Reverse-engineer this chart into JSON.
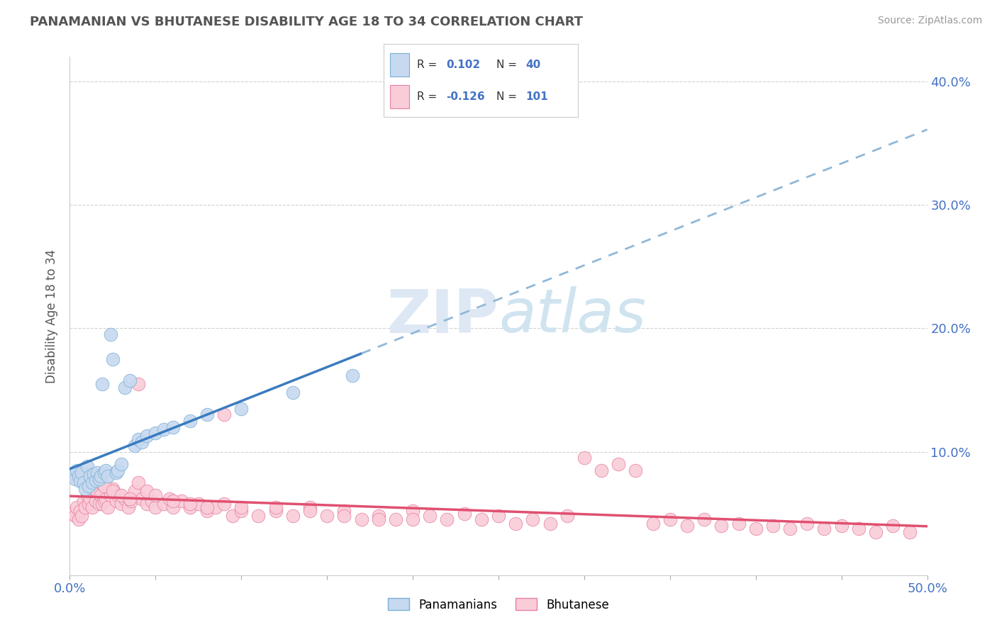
{
  "title": "PANAMANIAN VS BHUTANESE DISABILITY AGE 18 TO 34 CORRELATION CHART",
  "source": "Source: ZipAtlas.com",
  "ylabel": "Disability Age 18 to 34",
  "xlim": [
    0.0,
    0.5
  ],
  "ylim": [
    0.0,
    0.42
  ],
  "color_panamanian": "#c6d9f0",
  "color_bhutanese": "#f9ccd8",
  "color_panamanian_edge": "#7bafd4",
  "color_bhutanese_edge": "#e87fa0",
  "color_panamanian_line": "#3a7bbf",
  "color_bhutanese_line": "#e05070",
  "color_panamanian_line_dash": "#90b8d8",
  "color_title": "#555555",
  "color_source": "#999999",
  "color_legend_text_dark": "#333333",
  "color_legend_text_blue": "#4472c4",
  "background_color": "#ffffff",
  "pan_x": [
    0.002,
    0.003,
    0.004,
    0.005,
    0.006,
    0.007,
    0.008,
    0.009,
    0.01,
    0.011,
    0.012,
    0.013,
    0.014,
    0.015,
    0.016,
    0.017,
    0.018,
    0.019,
    0.02,
    0.021,
    0.022,
    0.024,
    0.025,
    0.027,
    0.028,
    0.03,
    0.032,
    0.035,
    0.038,
    0.04,
    0.042,
    0.045,
    0.05,
    0.055,
    0.06,
    0.07,
    0.08,
    0.1,
    0.13,
    0.165
  ],
  "pan_y": [
    0.082,
    0.078,
    0.085,
    0.08,
    0.076,
    0.083,
    0.075,
    0.07,
    0.088,
    0.072,
    0.08,
    0.075,
    0.082,
    0.077,
    0.083,
    0.078,
    0.08,
    0.155,
    0.083,
    0.085,
    0.08,
    0.195,
    0.175,
    0.083,
    0.085,
    0.09,
    0.152,
    0.158,
    0.105,
    0.11,
    0.108,
    0.113,
    0.115,
    0.118,
    0.12,
    0.125,
    0.13,
    0.135,
    0.148,
    0.162
  ],
  "bhu_x": [
    0.002,
    0.003,
    0.004,
    0.005,
    0.006,
    0.007,
    0.008,
    0.009,
    0.01,
    0.011,
    0.012,
    0.013,
    0.014,
    0.015,
    0.016,
    0.017,
    0.018,
    0.019,
    0.02,
    0.021,
    0.022,
    0.024,
    0.025,
    0.027,
    0.028,
    0.03,
    0.032,
    0.034,
    0.036,
    0.038,
    0.04,
    0.042,
    0.045,
    0.048,
    0.05,
    0.055,
    0.058,
    0.06,
    0.065,
    0.07,
    0.075,
    0.08,
    0.085,
    0.09,
    0.095,
    0.1,
    0.11,
    0.12,
    0.13,
    0.14,
    0.15,
    0.16,
    0.17,
    0.18,
    0.19,
    0.2,
    0.21,
    0.22,
    0.23,
    0.24,
    0.25,
    0.26,
    0.27,
    0.28,
    0.29,
    0.3,
    0.31,
    0.32,
    0.33,
    0.34,
    0.35,
    0.36,
    0.37,
    0.38,
    0.39,
    0.4,
    0.41,
    0.42,
    0.43,
    0.44,
    0.45,
    0.46,
    0.47,
    0.48,
    0.49,
    0.01,
    0.012,
    0.015,
    0.018,
    0.02,
    0.025,
    0.03,
    0.035,
    0.04,
    0.045,
    0.05,
    0.06,
    0.07,
    0.08,
    0.09,
    0.1,
    0.12,
    0.14,
    0.16,
    0.18,
    0.2
  ],
  "bhu_y": [
    0.05,
    0.048,
    0.055,
    0.045,
    0.052,
    0.048,
    0.06,
    0.055,
    0.065,
    0.058,
    0.062,
    0.055,
    0.07,
    0.06,
    0.068,
    0.058,
    0.065,
    0.058,
    0.06,
    0.062,
    0.055,
    0.065,
    0.07,
    0.06,
    0.065,
    0.058,
    0.062,
    0.055,
    0.06,
    0.068,
    0.155,
    0.062,
    0.058,
    0.06,
    0.055,
    0.058,
    0.062,
    0.055,
    0.06,
    0.055,
    0.058,
    0.052,
    0.055,
    0.13,
    0.048,
    0.052,
    0.048,
    0.052,
    0.048,
    0.055,
    0.048,
    0.052,
    0.045,
    0.048,
    0.045,
    0.052,
    0.048,
    0.045,
    0.05,
    0.045,
    0.048,
    0.042,
    0.045,
    0.042,
    0.048,
    0.095,
    0.085,
    0.09,
    0.085,
    0.042,
    0.045,
    0.04,
    0.045,
    0.04,
    0.042,
    0.038,
    0.04,
    0.038,
    0.042,
    0.038,
    0.04,
    0.038,
    0.035,
    0.04,
    0.035,
    0.08,
    0.082,
    0.078,
    0.075,
    0.072,
    0.068,
    0.065,
    0.062,
    0.075,
    0.068,
    0.065,
    0.06,
    0.058,
    0.055,
    0.058,
    0.055,
    0.055,
    0.052,
    0.048,
    0.045,
    0.045
  ]
}
